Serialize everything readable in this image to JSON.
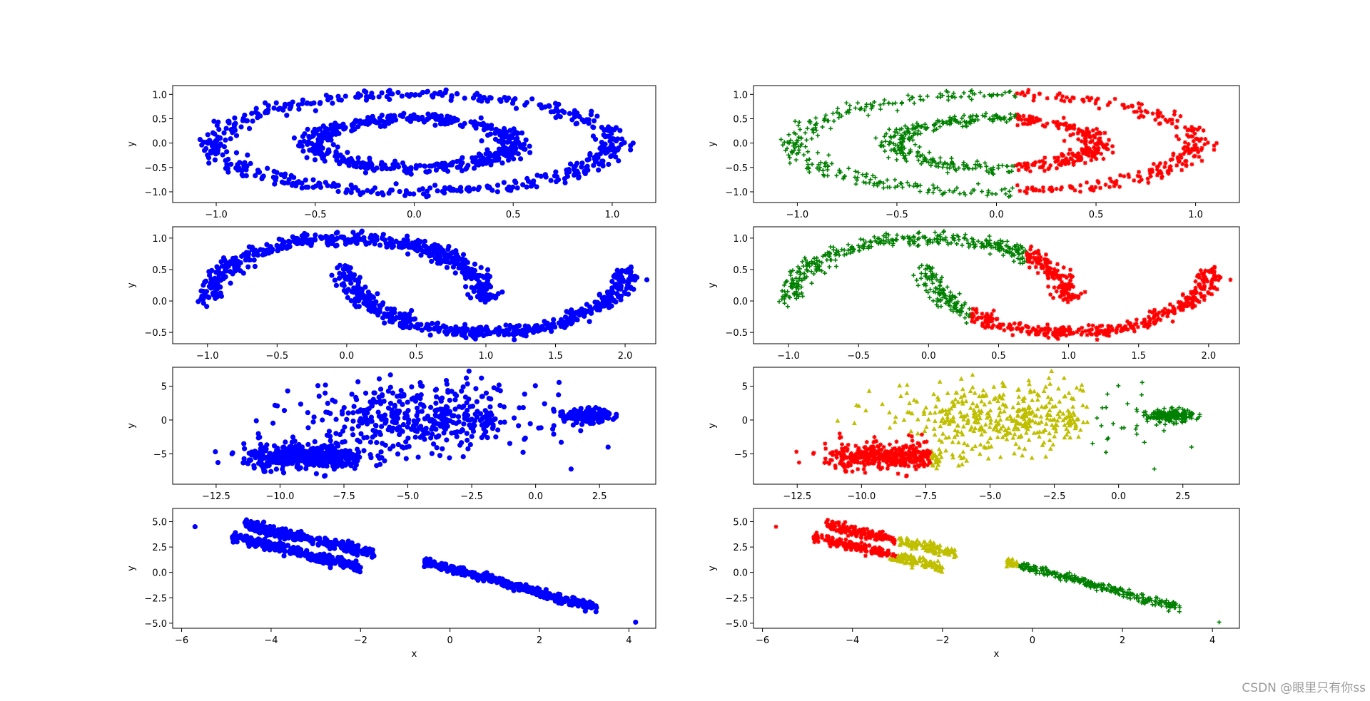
{
  "watermark": "CSDN @眼里只有你ss",
  "chart_data": [
    {
      "id": "p0",
      "type": "scatter",
      "shape": "circles",
      "xlabel": "",
      "ylabel": "y",
      "xlim": [
        -1.22,
        1.22
      ],
      "ylim": [
        -1.22,
        1.18
      ],
      "xticks": [
        -1.0,
        -0.5,
        0.0,
        0.5,
        1.0
      ],
      "xtick_labels": [
        "−1.0",
        "−0.5",
        "0.0",
        "0.5",
        "1.0"
      ],
      "yticks": [
        1.0,
        0.5,
        0.0,
        -0.5,
        -1.0
      ],
      "ytick_labels": [
        "1.0",
        "0.5",
        "0.0",
        "−0.5",
        "−1.0"
      ],
      "marker": "circle",
      "colors": {
        "all": "#0000ff"
      }
    },
    {
      "id": "p1",
      "type": "scatter",
      "shape": "circles",
      "xlabel": "",
      "ylabel": "y",
      "xlim": [
        -1.22,
        1.22
      ],
      "ylim": [
        -1.22,
        1.18
      ],
      "xticks": [
        -1.0,
        -0.5,
        0.0,
        0.5,
        1.0
      ],
      "xtick_labels": [
        "−1.0",
        "−0.5",
        "0.0",
        "0.5",
        "1.0"
      ],
      "yticks": [
        1.0,
        0.5,
        0.0,
        -0.5,
        -1.0
      ],
      "ytick_labels": [
        "1.0",
        "0.5",
        "0.0",
        "−0.5",
        "−1.0"
      ],
      "marker": "plus/star",
      "colors": {
        "left": "#008000",
        "right": "#ff0000"
      }
    },
    {
      "id": "p2",
      "type": "scatter",
      "shape": "moons",
      "xlabel": "",
      "ylabel": "y",
      "xlim": [
        -1.25,
        2.22
      ],
      "ylim": [
        -0.68,
        1.18
      ],
      "xticks": [
        -1.0,
        -0.5,
        0.0,
        0.5,
        1.0,
        1.5,
        2.0
      ],
      "xtick_labels": [
        "−1.0",
        "−0.5",
        "0.0",
        "0.5",
        "1.0",
        "1.5",
        "2.0"
      ],
      "yticks": [
        1.0,
        0.5,
        0.0,
        -0.5
      ],
      "ytick_labels": [
        "1.0",
        "0.5",
        "0.0",
        "−0.5"
      ],
      "marker": "circle",
      "colors": {
        "all": "#0000ff"
      }
    },
    {
      "id": "p3",
      "type": "scatter",
      "shape": "moons",
      "xlabel": "",
      "ylabel": "y",
      "xlim": [
        -1.25,
        2.22
      ],
      "ylim": [
        -0.68,
        1.18
      ],
      "xticks": [
        -1.0,
        -0.5,
        0.0,
        0.5,
        1.0,
        1.5,
        2.0
      ],
      "xtick_labels": [
        "−1.0",
        "−0.5",
        "0.0",
        "0.5",
        "1.0",
        "1.5",
        "2.0"
      ],
      "yticks": [
        1.0,
        0.5,
        0.0,
        -0.5
      ],
      "ytick_labels": [
        "1.0",
        "0.5",
        "0.0",
        "−0.5"
      ],
      "marker": "plus/star",
      "colors": {
        "green": "#008000",
        "red": "#ff0000"
      }
    },
    {
      "id": "p4",
      "type": "scatter",
      "shape": "blobs",
      "xlabel": "",
      "ylabel": "y",
      "xlim": [
        -14.2,
        4.7
      ],
      "ylim": [
        -9.5,
        7.8
      ],
      "xticks": [
        -12.5,
        -10.0,
        -7.5,
        -5.0,
        -2.5,
        0.0,
        2.5
      ],
      "xtick_labels": [
        "−12.5",
        "−10.0",
        "−7.5",
        "−5.0",
        "−2.5",
        "0.0",
        "2.5"
      ],
      "yticks": [
        5,
        0,
        -5
      ],
      "ytick_labels": [
        "5",
        "0",
        "−5"
      ],
      "marker": "circle",
      "colors": {
        "all": "#0000ff"
      }
    },
    {
      "id": "p5",
      "type": "scatter",
      "shape": "blobs",
      "xlabel": "",
      "ylabel": "y",
      "xlim": [
        -14.2,
        4.7
      ],
      "ylim": [
        -9.5,
        7.8
      ],
      "xticks": [
        -12.5,
        -10.0,
        -7.5,
        -5.0,
        -2.5,
        0.0,
        2.5
      ],
      "xtick_labels": [
        "−12.5",
        "−10.0",
        "−7.5",
        "−5.0",
        "−2.5",
        "0.0",
        "2.5"
      ],
      "yticks": [
        5,
        0,
        -5
      ],
      "ytick_labels": [
        "5",
        "0",
        "−5"
      ],
      "marker": "star/triangle/plus",
      "colors": {
        "red": "#ff0000",
        "yellow": "#bfbf00",
        "green": "#008000"
      }
    },
    {
      "id": "p6",
      "type": "scatter",
      "shape": "lines",
      "xlabel": "x",
      "ylabel": "y",
      "xlim": [
        -6.2,
        4.6
      ],
      "ylim": [
        -5.5,
        6.3
      ],
      "xticks": [
        -6,
        -4,
        -2,
        0,
        2,
        4
      ],
      "xtick_labels": [
        "−6",
        "−4",
        "−2",
        "0",
        "2",
        "4"
      ],
      "yticks": [
        5.0,
        2.5,
        0.0,
        -2.5,
        -5.0
      ],
      "ytick_labels": [
        "5.0",
        "2.5",
        "0.0",
        "−2.5",
        "−5.0"
      ],
      "marker": "circle",
      "colors": {
        "all": "#0000ff"
      }
    },
    {
      "id": "p7",
      "type": "scatter",
      "shape": "lines",
      "xlabel": "x",
      "ylabel": "y",
      "xlim": [
        -6.2,
        4.6
      ],
      "ylim": [
        -5.5,
        6.3
      ],
      "xticks": [
        -6,
        -4,
        -2,
        0,
        2,
        4
      ],
      "xtick_labels": [
        "−6",
        "−4",
        "−2",
        "0",
        "2",
        "4"
      ],
      "yticks": [
        5.0,
        2.5,
        0.0,
        -2.5,
        -5.0
      ],
      "ytick_labels": [
        "5.0",
        "2.5",
        "0.0",
        "−2.5",
        "−5.0"
      ],
      "marker": "star/triangle/plus",
      "colors": {
        "red": "#ff0000",
        "yellow": "#bfbf00",
        "green": "#008000"
      }
    }
  ]
}
